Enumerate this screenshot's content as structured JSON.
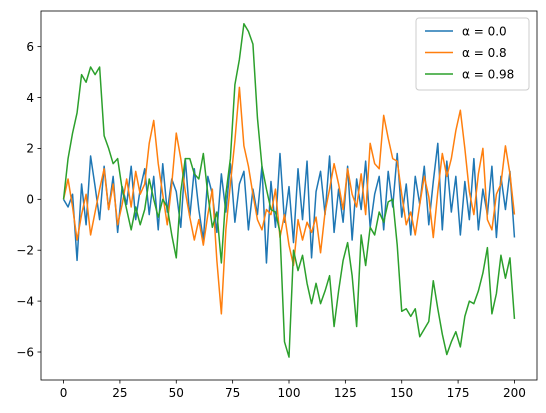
{
  "chart_data": {
    "type": "line",
    "title": "",
    "xlabel": "",
    "ylabel": "",
    "xlim": [
      -10,
      210
    ],
    "ylim": [
      -7.1,
      7.4
    ],
    "xticks": [
      0,
      25,
      50,
      75,
      100,
      125,
      150,
      175,
      200
    ],
    "yticks": [
      -6,
      -4,
      -2,
      0,
      2,
      4,
      6
    ],
    "xtick_labels": [
      "0",
      "25",
      "50",
      "75",
      "100",
      "125",
      "150",
      "175",
      "200"
    ],
    "ytick_labels": [
      "−6",
      "−4",
      "−2",
      "0",
      "2",
      "4",
      "6"
    ],
    "grid": false,
    "legend_position": "upper right",
    "series": [
      {
        "name": "α = 0.0",
        "color": "#1f77b4",
        "x": [
          0,
          2,
          4,
          6,
          8,
          10,
          12,
          14,
          16,
          18,
          20,
          22,
          24,
          26,
          28,
          30,
          32,
          34,
          36,
          38,
          40,
          42,
          44,
          46,
          48,
          50,
          52,
          54,
          56,
          58,
          60,
          62,
          64,
          66,
          68,
          70,
          72,
          74,
          76,
          78,
          80,
          82,
          84,
          86,
          88,
          90,
          92,
          94,
          96,
          98,
          100,
          102,
          104,
          106,
          108,
          110,
          112,
          114,
          116,
          118,
          120,
          122,
          124,
          126,
          128,
          130,
          132,
          134,
          136,
          138,
          140,
          142,
          144,
          146,
          148,
          150,
          152,
          154,
          156,
          158,
          160,
          162,
          164,
          166,
          168,
          170,
          172,
          174,
          176,
          178,
          180,
          182,
          184,
          186,
          188,
          190,
          192,
          194,
          196,
          198,
          200
        ],
        "y": [
          0.0,
          -0.3,
          0.2,
          -2.4,
          0.6,
          -1.0,
          1.7,
          0.5,
          -0.8,
          1.3,
          -0.4,
          0.9,
          -1.3,
          0.5,
          -0.2,
          1.3,
          -0.8,
          0.4,
          1.2,
          -0.6,
          0.9,
          -1.2,
          1.4,
          -0.5,
          0.8,
          0.3,
          -1.1,
          1.6,
          -0.7,
          1.2,
          -0.4,
          -1.6,
          0.9,
          0.2,
          -1.3,
          1.0,
          -0.5,
          1.4,
          -0.9,
          0.6,
          1.1,
          -1.2,
          0.4,
          -0.6,
          1.3,
          -2.5,
          0.7,
          -1.1,
          1.8,
          -0.9,
          0.5,
          -1.7,
          1.2,
          -0.8,
          1.5,
          -2.3,
          0.3,
          1.1,
          -0.6,
          1.7,
          -1.3,
          0.4,
          -0.9,
          1.3,
          -1.6,
          0.8,
          -0.4,
          1.5,
          -1.1,
          0.2,
          0.9,
          -1.2,
          1.1,
          -0.3,
          1.8,
          -0.7,
          0.6,
          -1.4,
          0.9,
          -0.2,
          1.3,
          -1.0,
          0.7,
          2.2,
          -1.2,
          1.5,
          -0.5,
          0.9,
          -1.4,
          0.7,
          -0.8,
          1.6,
          -1.2,
          0.4,
          -0.6,
          1.3,
          -1.5,
          0.9,
          -0.4,
          1.1,
          -1.5
        ]
      },
      {
        "name": "α = 0.8",
        "color": "#ff7f0e",
        "x": [
          0,
          2,
          4,
          6,
          8,
          10,
          12,
          14,
          16,
          18,
          20,
          22,
          24,
          26,
          28,
          30,
          32,
          34,
          36,
          38,
          40,
          42,
          44,
          46,
          48,
          50,
          52,
          54,
          56,
          58,
          60,
          62,
          64,
          66,
          68,
          70,
          72,
          74,
          76,
          78,
          80,
          82,
          84,
          86,
          88,
          90,
          92,
          94,
          96,
          98,
          100,
          102,
          104,
          106,
          108,
          110,
          112,
          114,
          116,
          118,
          120,
          122,
          124,
          126,
          128,
          130,
          132,
          134,
          136,
          138,
          140,
          142,
          144,
          146,
          148,
          150,
          152,
          154,
          156,
          158,
          160,
          162,
          164,
          166,
          168,
          170,
          172,
          174,
          176,
          178,
          180,
          182,
          184,
          186,
          188,
          190,
          192,
          194,
          196,
          198,
          200
        ],
        "y": [
          0.0,
          0.8,
          -0.3,
          -1.6,
          -0.6,
          0.2,
          -1.4,
          -0.5,
          0.4,
          1.2,
          -0.4,
          0.6,
          -1.0,
          -0.2,
          0.8,
          -0.3,
          1.1,
          0.2,
          0.6,
          2.2,
          3.1,
          1.4,
          0.2,
          -1.0,
          0.6,
          2.6,
          1.6,
          0.3,
          -0.7,
          -1.6,
          -0.8,
          -1.8,
          -0.6,
          0.4,
          -2.4,
          -4.5,
          -1.2,
          0.6,
          2.3,
          4.4,
          2.1,
          1.3,
          0.2,
          -0.8,
          -1.2,
          -0.4,
          -0.6,
          0.4,
          -1.5,
          -0.6,
          -1.8,
          -2.6,
          -0.8,
          -1.6,
          -0.9,
          -1.3,
          -0.7,
          -2.1,
          -0.5,
          0.4,
          1.4,
          0.6,
          -0.4,
          1.2,
          0.2,
          -0.3,
          1.0,
          -0.6,
          2.2,
          1.4,
          1.2,
          3.3,
          2.4,
          1.6,
          1.5,
          0.2,
          -1.0,
          -0.5,
          -1.4,
          -0.2,
          0.9,
          0.1,
          -1.5,
          0.3,
          1.8,
          0.9,
          1.6,
          2.7,
          3.5,
          2.0,
          0.3,
          -0.6,
          1.0,
          2.0,
          -0.8,
          -1.2,
          0.2,
          0.6,
          2.1,
          1.0,
          -0.6
        ]
      },
      {
        "name": "α = 0.98",
        "color": "#2ca02c",
        "x": [
          0,
          2,
          4,
          6,
          8,
          10,
          12,
          14,
          16,
          18,
          20,
          22,
          24,
          26,
          28,
          30,
          32,
          34,
          36,
          38,
          40,
          42,
          44,
          46,
          48,
          50,
          52,
          54,
          56,
          58,
          60,
          62,
          64,
          66,
          68,
          70,
          72,
          74,
          76,
          78,
          80,
          82,
          84,
          86,
          88,
          90,
          92,
          94,
          96,
          98,
          100,
          102,
          104,
          106,
          108,
          110,
          112,
          114,
          116,
          118,
          120,
          122,
          124,
          126,
          128,
          130,
          132,
          134,
          136,
          138,
          140,
          142,
          144,
          146,
          148,
          150,
          152,
          154,
          156,
          158,
          160,
          162,
          164,
          166,
          168,
          170,
          172,
          174,
          176,
          178,
          180,
          182,
          184,
          186,
          188,
          190,
          192,
          194,
          196,
          198,
          200
        ],
        "y": [
          0.0,
          1.6,
          2.6,
          3.4,
          4.9,
          4.6,
          5.2,
          4.9,
          5.2,
          2.5,
          2.0,
          1.4,
          1.6,
          0.4,
          -0.4,
          -1.2,
          -0.3,
          -1.0,
          -0.4,
          0.8,
          0.0,
          -0.7,
          0.0,
          -0.3,
          -1.4,
          -2.3,
          0.3,
          1.6,
          1.6,
          1.0,
          0.8,
          1.8,
          0.2,
          -1.1,
          -0.5,
          -2.5,
          0.2,
          1.6,
          4.5,
          5.5,
          6.9,
          6.6,
          6.1,
          3.2,
          1.3,
          0.4,
          -0.4,
          -0.5,
          -1.3,
          -5.6,
          -6.2,
          -2.0,
          -2.8,
          -2.2,
          -3.3,
          -4.1,
          -3.3,
          -4.1,
          -3.6,
          -3.0,
          -5.0,
          -3.6,
          -2.4,
          -1.7,
          -3.0,
          -5.0,
          -1.4,
          -2.6,
          -1.1,
          -1.4,
          -0.5,
          -0.9,
          -0.1,
          0.0,
          -1.8,
          -4.4,
          -4.3,
          -4.6,
          -4.3,
          -5.4,
          -5.1,
          -4.8,
          -3.2,
          -4.3,
          -5.3,
          -6.1,
          -5.6,
          -5.2,
          -5.8,
          -4.6,
          -4.0,
          -4.1,
          -3.6,
          -2.9,
          -1.9,
          -4.5,
          -3.7,
          -2.2,
          -3.1,
          -2.3,
          -4.7
        ]
      }
    ]
  }
}
